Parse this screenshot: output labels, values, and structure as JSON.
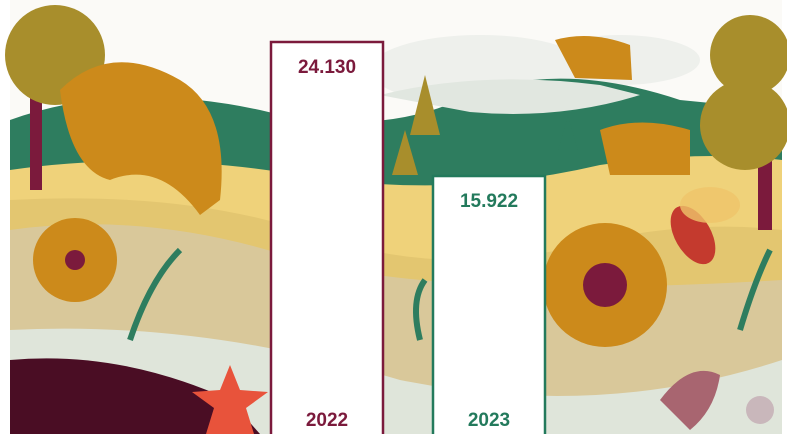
{
  "chart_data": {
    "type": "bar",
    "categories": [
      "2022",
      "2023"
    ],
    "values": [
      24130,
      15922
    ],
    "value_labels": [
      "24.130",
      "15.922"
    ],
    "colors": [
      "#7b1a3c",
      "#237a5c"
    ]
  }
}
